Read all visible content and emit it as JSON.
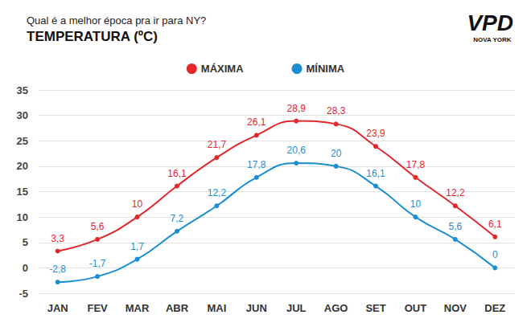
{
  "chart_data": {
    "type": "line",
    "subtitle": "Qual é a melhor época pra ir para NY?",
    "title": "TEMPERATURA (ºC)",
    "annotations": [
      "VPD",
      "NOVA YORK"
    ],
    "categories": [
      "JAN",
      "FEV",
      "MAR",
      "ABR",
      "MAI",
      "JUN",
      "JUL",
      "AGO",
      "SET",
      "OUT",
      "NOV",
      "DEZ"
    ],
    "series": [
      {
        "name": "MÁXIMA",
        "color": "#e5262b",
        "values": [
          3.3,
          5.6,
          10,
          16.1,
          21.7,
          26.1,
          28.9,
          28.3,
          23.9,
          17.8,
          12.2,
          6.1
        ],
        "value_labels": [
          "3,3",
          "5,6",
          "10",
          "16,1",
          "21,7",
          "26,1",
          "28,9",
          "28,3",
          "23,9",
          "17,8",
          "12,2",
          "6,1"
        ]
      },
      {
        "name": "MÍNIMA",
        "color": "#1b8ed3",
        "values": [
          -2.8,
          -1.7,
          1.7,
          7.2,
          12.2,
          17.8,
          20.6,
          20,
          16.1,
          10,
          5.6,
          0
        ],
        "value_labels": [
          "-2,8",
          "-1,7",
          "1,7",
          "7,2",
          "12,2",
          "17,8",
          "20,6",
          "20",
          "16,1",
          "10",
          "5,6",
          "0"
        ]
      }
    ],
    "ylim": [
      -5,
      35
    ],
    "yticks": [
      -5,
      0,
      5,
      10,
      15,
      20,
      25,
      30,
      35
    ],
    "grid": true,
    "legend": "top",
    "data_labels": true,
    "marker": "circle",
    "line_style": "solid"
  }
}
